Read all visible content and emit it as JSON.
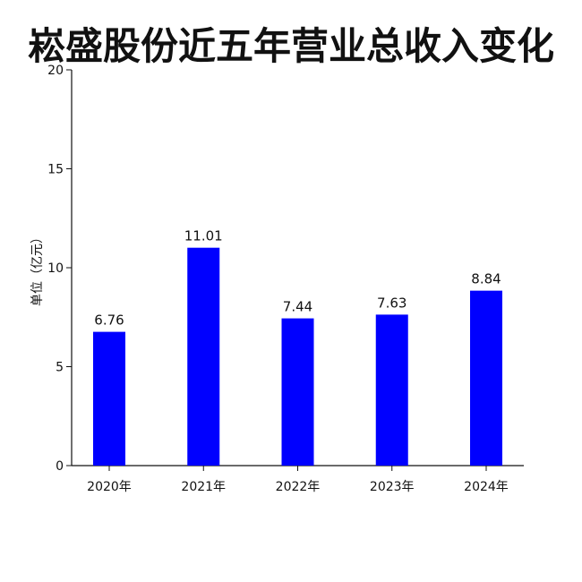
{
  "chart_data": {
    "type": "bar",
    "title": "崧盛股份近五年营业总收入变化",
    "ylabel": "单位（亿元）",
    "xlabel": "",
    "categories": [
      "2020年",
      "2021年",
      "2022年",
      "2023年",
      "2024年"
    ],
    "values": [
      6.76,
      11.01,
      7.44,
      7.63,
      8.84
    ],
    "value_labels": [
      "6.76",
      "11.01",
      "7.44",
      "7.63",
      "8.84"
    ],
    "ylim": [
      0,
      20
    ],
    "yticks": [
      0,
      5,
      10,
      15,
      20
    ],
    "ytick_labels": [
      "0",
      "5",
      "10",
      "15",
      "20"
    ],
    "bar_color": "#0000ff",
    "grid": false,
    "legend": "none"
  }
}
